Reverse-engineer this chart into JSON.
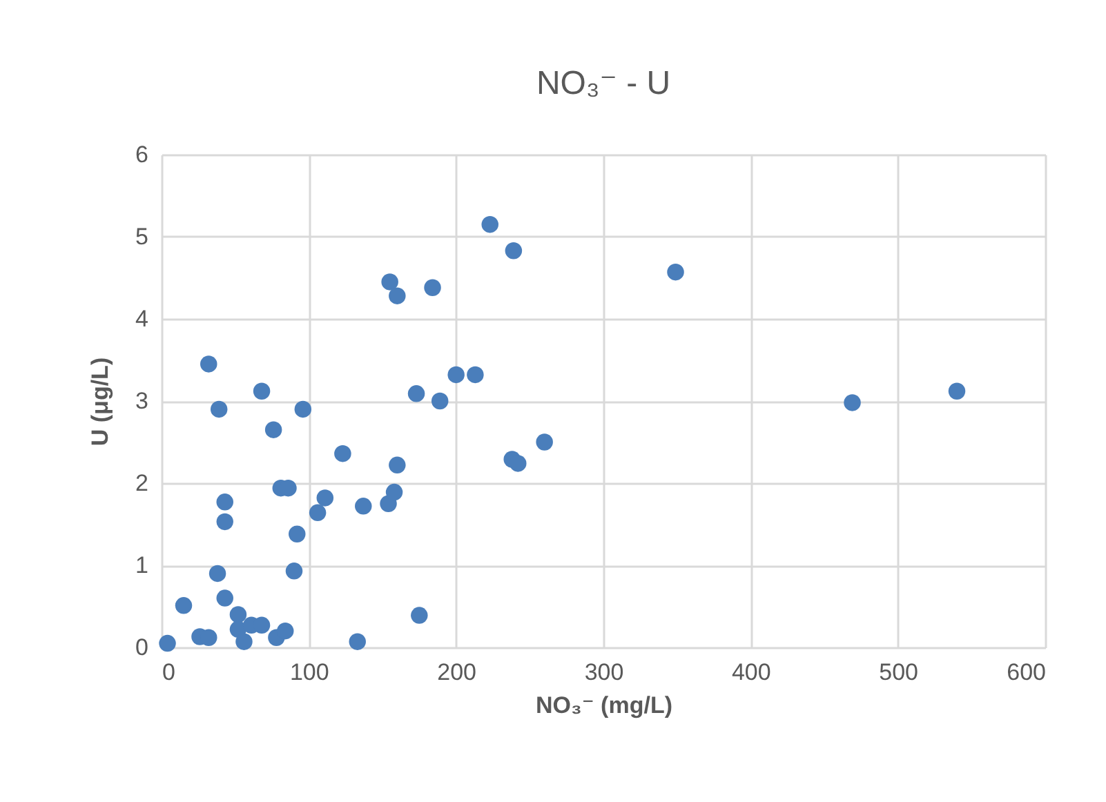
{
  "chart_data": {
    "type": "scatter",
    "title": "NO₃⁻ - U",
    "xlabel": "NO₃⁻ (mg/L)",
    "ylabel": "U (μg/L)",
    "x": [
      4,
      15,
      26,
      32,
      32,
      39,
      38,
      43,
      43,
      43,
      52,
      52,
      56,
      61,
      68,
      68,
      76,
      78,
      81,
      86,
      84,
      90,
      92,
      96,
      106,
      111,
      123,
      133,
      137,
      154,
      158,
      160,
      155,
      160,
      184,
      175,
      173,
      189,
      200,
      213,
      223,
      239,
      238,
      242,
      260,
      349,
      469,
      540
    ],
    "series": [
      {
        "color": "#4a7ebb",
        "values": [
          0.05,
          0.51,
          0.13,
          0.12,
          3.45,
          2.9,
          0.9,
          0.6,
          1.77,
          1.53,
          0.4,
          0.22,
          0.07,
          0.27,
          0.27,
          3.12,
          2.65,
          0.12,
          1.94,
          1.94,
          0.2,
          0.93,
          1.38,
          2.9,
          1.64,
          1.82,
          2.36,
          0.07,
          1.72,
          1.75,
          1.89,
          2.22,
          4.45,
          4.28,
          4.38,
          0.39,
          3.09,
          3.0,
          3.32,
          3.32,
          5.15,
          4.83,
          2.29,
          2.24,
          2.5,
          4.57,
          2.98,
          3.12
        ]
      }
    ],
    "xlim": [
      0,
      600
    ],
    "xticks": [
      0,
      100,
      200,
      300,
      400,
      500,
      600
    ],
    "ylim": [
      0,
      6
    ],
    "yticks": [
      0,
      1,
      2,
      3,
      4,
      5,
      6
    ],
    "grid": true,
    "marker": "circle"
  }
}
